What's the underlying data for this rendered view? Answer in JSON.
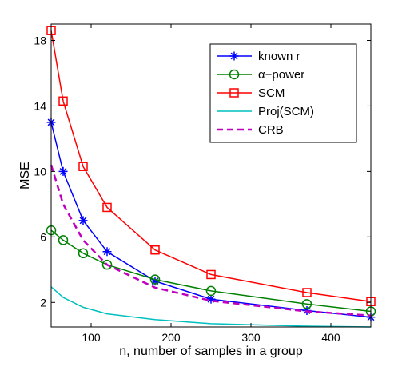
{
  "chart_data": {
    "type": "line",
    "xlabel": "n, number of samples in a group",
    "ylabel": "MSE",
    "xlim": [
      50,
      450
    ],
    "ylim": [
      0.5,
      19
    ],
    "xticks": [
      100,
      200,
      300,
      400
    ],
    "yticks": [
      2,
      6,
      10,
      14,
      18
    ],
    "grid": false,
    "legend_position": "top-right",
    "series": [
      {
        "name": "known r",
        "color": "#0000ff",
        "marker": "asterisk",
        "dash": false,
        "x": [
          50,
          65,
          90,
          120,
          180,
          250,
          370,
          450
        ],
        "y": [
          13.0,
          10.0,
          7.0,
          5.1,
          3.3,
          2.2,
          1.5,
          1.1
        ]
      },
      {
        "name": "α−power",
        "color": "#008000",
        "marker": "circle",
        "dash": false,
        "x": [
          50,
          65,
          90,
          120,
          180,
          250,
          370,
          450
        ],
        "y": [
          6.4,
          5.8,
          5.0,
          4.3,
          3.4,
          2.7,
          1.9,
          1.45
        ]
      },
      {
        "name": "SCM",
        "color": "#ff0000",
        "marker": "square",
        "dash": false,
        "x": [
          50,
          65,
          90,
          120,
          180,
          250,
          370,
          450
        ],
        "y": [
          18.6,
          14.3,
          10.3,
          7.8,
          5.2,
          3.7,
          2.6,
          2.05
        ]
      },
      {
        "name": "Proj(SCM)",
        "color": "#00bfbf",
        "marker": "none",
        "dash": false,
        "x": [
          50,
          65,
          90,
          120,
          180,
          250,
          370,
          450
        ],
        "y": [
          2.95,
          2.3,
          1.7,
          1.3,
          0.95,
          0.7,
          0.55,
          0.5
        ]
      },
      {
        "name": "CRB",
        "color": "#bf00bf",
        "marker": "none",
        "dash": true,
        "x": [
          50,
          65,
          90,
          120,
          180,
          250,
          370,
          450
        ],
        "y": [
          10.4,
          8.0,
          5.8,
          4.3,
          2.9,
          2.1,
          1.45,
          1.2
        ]
      }
    ]
  }
}
